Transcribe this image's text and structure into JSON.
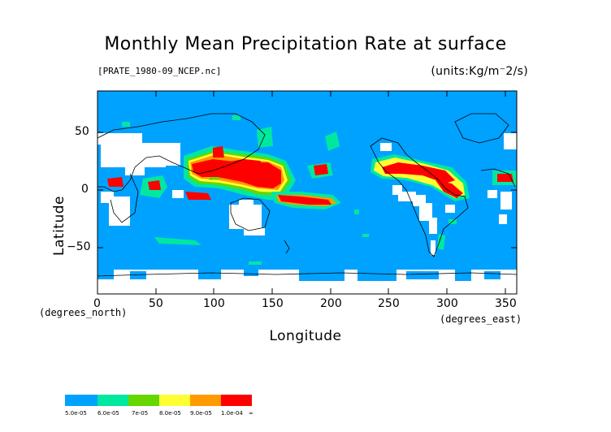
{
  "title": "Monthly Mean Precipitation Rate at surface",
  "file_label": "[PRATE_1980-09_NCEP.nc]",
  "units_label": "(units:Kg/m⁻2/s)",
  "x_axis": {
    "label": "Longitude",
    "unit": "(degrees_east)",
    "ticks": [
      "0",
      "50",
      "100",
      "150",
      "200",
      "250",
      "300",
      "350"
    ],
    "tick_values": [
      0,
      50,
      100,
      150,
      200,
      250,
      300,
      350
    ],
    "range": [
      0,
      360
    ]
  },
  "y_axis": {
    "label": "Latitude",
    "unit": "(degrees_north)",
    "ticks": [
      "50",
      "0",
      "−50"
    ],
    "tick_values": [
      50,
      0,
      -50
    ],
    "range": [
      -90,
      90
    ]
  },
  "legend": {
    "labels": [
      "5.0e-05",
      "6.0e-05",
      "7e-05",
      "8.0e-05",
      "9.0e-05",
      "1.0e-04",
      "∞"
    ],
    "colors": [
      "#00a2ff",
      "#00e8a0",
      "#66d600",
      "#ffff33",
      "#ff9b00",
      "#ff0000"
    ]
  },
  "colors": {
    "low": "#00a2ff",
    "mid1": "#00e8a0",
    "mid2": "#66d600",
    "mid3": "#ffff33",
    "mid4": "#ff9b00",
    "high": "#ff0000",
    "missing": "#ffffff"
  }
}
